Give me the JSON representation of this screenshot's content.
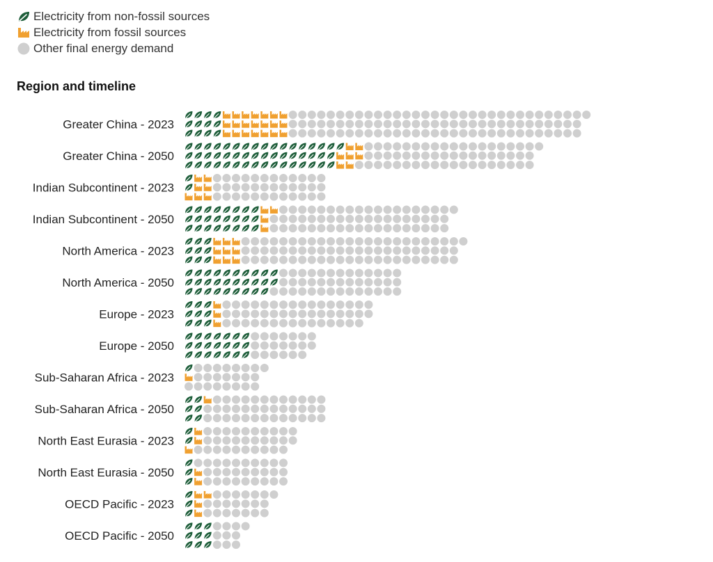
{
  "legend": {
    "items": [
      {
        "label": "Electricity from non-fossil sources",
        "icon": "leaf-icon",
        "color": "#1e5e3a"
      },
      {
        "label": "Electricity from fossil sources",
        "icon": "factory-icon",
        "color": "#f0a030"
      },
      {
        "label": "Other final energy demand",
        "icon": "circle-icon",
        "color": "#cfcfcf"
      }
    ]
  },
  "chart_title": "Region and timeline",
  "chart_data": {
    "type": "pictogram",
    "legend_placement": "top-left",
    "series": [
      "Electricity from non-fossil sources",
      "Electricity from fossil sources",
      "Other final energy demand"
    ],
    "categories": [
      "Greater China - 2023",
      "Greater China - 2050",
      "Indian Subcontinent - 2023",
      "Indian Subcontinent - 2050",
      "North America - 2023",
      "North America - 2050",
      "Europe - 2023",
      "Europe - 2050",
      "Sub-Saharan Africa - 2023",
      "Sub-Saharan Africa - 2050",
      "North East Eurasia - 2023",
      "North East Eurasia - 2050",
      "OECD Pacific - 2023",
      "OECD Pacific - 2050"
    ],
    "rows": [
      {
        "label": "Greater China - 2023",
        "lines": [
          [
            4,
            7,
            32
          ],
          [
            4,
            7,
            31
          ],
          [
            4,
            7,
            31
          ]
        ]
      },
      {
        "label": "Greater China - 2050",
        "lines": [
          [
            17,
            2,
            19
          ],
          [
            16,
            3,
            18
          ],
          [
            16,
            2,
            19
          ]
        ]
      },
      {
        "label": "Indian Subcontinent - 2023",
        "lines": [
          [
            1,
            2,
            12
          ],
          [
            1,
            2,
            12
          ],
          [
            0,
            3,
            12
          ]
        ]
      },
      {
        "label": "Indian Subcontinent - 2050",
        "lines": [
          [
            8,
            2,
            19
          ],
          [
            8,
            1,
            19
          ],
          [
            8,
            1,
            19
          ]
        ]
      },
      {
        "label": "North America - 2023",
        "lines": [
          [
            3,
            3,
            24
          ],
          [
            3,
            3,
            23
          ],
          [
            3,
            3,
            23
          ]
        ]
      },
      {
        "label": "North America - 2050",
        "lines": [
          [
            10,
            0,
            13
          ],
          [
            10,
            0,
            13
          ],
          [
            9,
            0,
            14
          ]
        ]
      },
      {
        "label": "Europe - 2023",
        "lines": [
          [
            3,
            1,
            16
          ],
          [
            3,
            1,
            16
          ],
          [
            3,
            1,
            15
          ]
        ]
      },
      {
        "label": "Europe - 2050",
        "lines": [
          [
            7,
            0,
            7
          ],
          [
            7,
            0,
            7
          ],
          [
            7,
            0,
            6
          ]
        ]
      },
      {
        "label": "Sub-Saharan Africa - 2023",
        "lines": [
          [
            1,
            0,
            8
          ],
          [
            0,
            1,
            7
          ],
          [
            0,
            0,
            8
          ]
        ]
      },
      {
        "label": "Sub-Saharan Africa - 2050",
        "lines": [
          [
            2,
            1,
            12
          ],
          [
            2,
            0,
            13
          ],
          [
            2,
            0,
            13
          ]
        ]
      },
      {
        "label": "North East Eurasia - 2023",
        "lines": [
          [
            1,
            1,
            10
          ],
          [
            1,
            1,
            10
          ],
          [
            0,
            1,
            10
          ]
        ]
      },
      {
        "label": "North East Eurasia - 2050",
        "lines": [
          [
            1,
            0,
            10
          ],
          [
            1,
            1,
            9
          ],
          [
            1,
            1,
            9
          ]
        ]
      },
      {
        "label": "OECD Pacific - 2023",
        "lines": [
          [
            1,
            2,
            7
          ],
          [
            1,
            1,
            7
          ],
          [
            1,
            1,
            7
          ]
        ]
      },
      {
        "label": "OECD Pacific - 2050",
        "lines": [
          [
            3,
            0,
            4
          ],
          [
            3,
            0,
            3
          ],
          [
            3,
            0,
            3
          ]
        ]
      }
    ]
  }
}
